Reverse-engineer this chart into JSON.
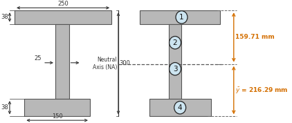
{
  "bg_color": "#ffffff",
  "beam_color": "#b8b8b8",
  "beam_edge": "#555555",
  "circle_color": "#cce4f0",
  "circle_edge": "#222222",
  "dim_color": "#333333",
  "orange_color": "#d46f00",
  "neutral_text": "Neutral\nAxis (NA)",
  "dim_250": "250",
  "dim_38t": "38",
  "dim_300": "300",
  "dim_25": "25",
  "dim_38b": "38",
  "dim_150": "150",
  "dim_159": "159.71 mm",
  "dim_216": "216.29 mm",
  "labels": [
    "1",
    "2",
    "3",
    "4"
  ]
}
